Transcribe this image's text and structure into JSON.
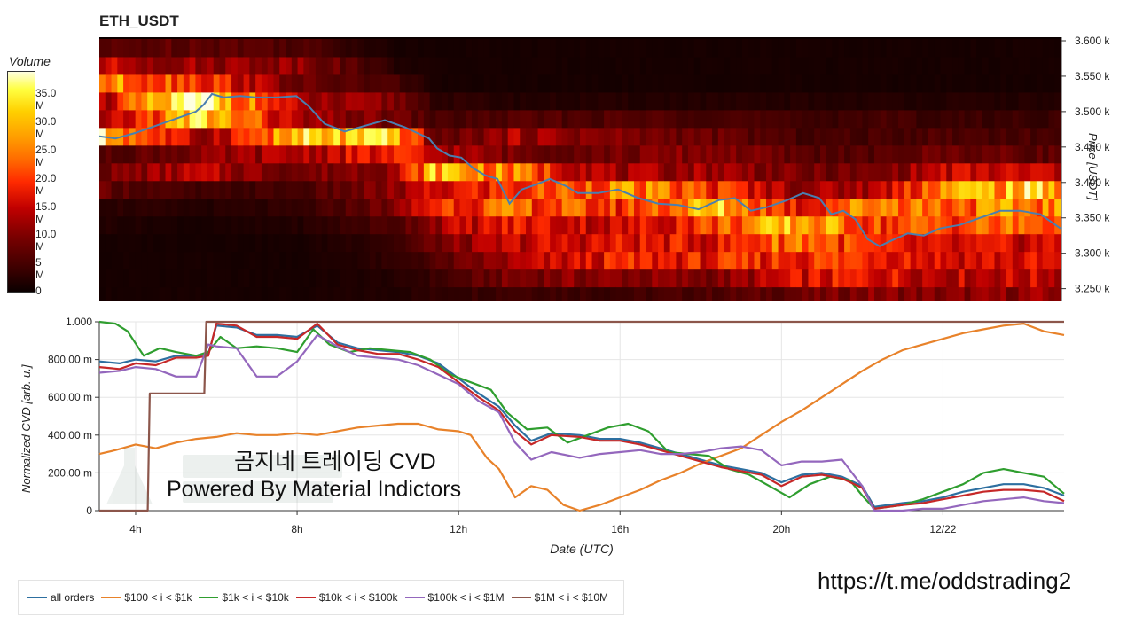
{
  "page": {
    "watermark_line1": "곰지네 트레이딩 CVD",
    "watermark_line2": "Powered By Material Indictors",
    "link": "https://t.me/oddstrading2"
  },
  "chart_data": [
    {
      "type": "heatmap",
      "title": "ETH_USDT",
      "colorbar": {
        "label": "Volume",
        "ticks": [
          "0",
          "5 M",
          "10.0 M",
          "15.0 M",
          "20.0 M",
          "25.0 M",
          "30.0 M",
          "35.0 M"
        ],
        "tick_values": [
          0,
          5,
          10,
          15,
          20,
          25,
          30,
          35
        ],
        "range": [
          0,
          39
        ]
      },
      "y_axis": {
        "label": "Price [USDT]",
        "position": "right",
        "ticks": [
          "3.250 k",
          "3.300 k",
          "3.350 k",
          "3.400 k",
          "3.450 k",
          "3.500 k",
          "3.550 k",
          "3.600 k"
        ],
        "tick_values": [
          3250,
          3300,
          3350,
          3400,
          3450,
          3500,
          3550,
          3600
        ],
        "range": [
          3232,
          3605
        ]
      },
      "x_range": [
        3.1,
        27.0
      ],
      "price_bands": [
        3240,
        3265,
        3290,
        3315,
        3340,
        3365,
        3390,
        3415,
        3440,
        3465,
        3490,
        3515,
        3540,
        3565,
        3590
      ],
      "band_intensity_keyframes": [
        {
          "t": 3.1,
          "v": [
            1,
            1,
            1,
            1,
            2,
            3,
            8,
            9,
            6,
            32,
            10,
            13,
            26,
            15,
            6
          ]
        },
        {
          "t": 5.6,
          "v": [
            1,
            1,
            1,
            1,
            1,
            2,
            4,
            14,
            10,
            12,
            33,
            38,
            22,
            12,
            8
          ]
        },
        {
          "t": 8.1,
          "v": [
            1,
            1,
            1,
            1,
            2,
            3,
            5,
            9,
            14,
            30,
            12,
            12,
            8,
            12,
            6
          ]
        },
        {
          "t": 10.5,
          "v": [
            2,
            2,
            3,
            4,
            6,
            10,
            11,
            13,
            18,
            30,
            9,
            10,
            5,
            2,
            1
          ]
        },
        {
          "t": 11.5,
          "v": [
            3,
            4,
            6,
            9,
            13,
            21,
            16,
            31,
            14,
            7,
            5,
            3,
            1,
            1,
            1
          ]
        },
        {
          "t": 13.5,
          "v": [
            5,
            10,
            13,
            15,
            18,
            23,
            20,
            24,
            9,
            13,
            6,
            2,
            1,
            1,
            1
          ]
        },
        {
          "t": 16.0,
          "v": [
            4,
            11,
            18,
            17,
            15,
            20,
            26,
            12,
            9,
            10,
            6,
            2,
            1,
            1,
            1
          ]
        },
        {
          "t": 18.5,
          "v": [
            6,
            10,
            18,
            17,
            22,
            30,
            20,
            13,
            11,
            8,
            6,
            2,
            1,
            1,
            1
          ]
        },
        {
          "t": 20.5,
          "v": [
            8,
            16,
            20,
            26,
            30,
            18,
            12,
            9,
            7,
            5,
            4,
            2,
            1,
            1,
            1
          ]
        },
        {
          "t": 22.5,
          "v": [
            11,
            18,
            21,
            17,
            21,
            28,
            14,
            9,
            6,
            5,
            5,
            2,
            1,
            1,
            1
          ]
        },
        {
          "t": 24.0,
          "v": [
            10,
            15,
            17,
            15,
            22,
            24,
            28,
            15,
            9,
            6,
            4,
            2,
            1,
            1,
            1
          ]
        },
        {
          "t": 27.0,
          "v": [
            12,
            15,
            16,
            16,
            24,
            26,
            31,
            15,
            7,
            5,
            4,
            2,
            1,
            1,
            1
          ]
        }
      ],
      "price_series": {
        "x": [
          3.1,
          3.5,
          4.0,
          4.5,
          5.0,
          5.5,
          5.7,
          5.9,
          6.2,
          6.6,
          7.0,
          7.5,
          8.0,
          8.3,
          8.7,
          9.2,
          9.7,
          10.2,
          10.7,
          11.0,
          11.3,
          11.5,
          11.8,
          12.1,
          12.4,
          12.7,
          13.0,
          13.3,
          13.6,
          14.0,
          14.3,
          14.7,
          15.0,
          15.5,
          16.0,
          16.5,
          17.0,
          17.5,
          18.0,
          18.5,
          18.9,
          19.3,
          19.7,
          20.2,
          20.6,
          21.0,
          21.3,
          21.6,
          21.9,
          22.2,
          22.5,
          22.8,
          23.2,
          23.6,
          24.0,
          24.5,
          25.0,
          25.5,
          26.0,
          26.5,
          27.0
        ],
        "y": [
          3465,
          3462,
          3470,
          3480,
          3490,
          3500,
          3510,
          3525,
          3520,
          3522,
          3520,
          3520,
          3522,
          3508,
          3483,
          3472,
          3480,
          3488,
          3478,
          3470,
          3462,
          3448,
          3438,
          3435,
          3420,
          3410,
          3405,
          3370,
          3390,
          3398,
          3405,
          3395,
          3385,
          3385,
          3390,
          3378,
          3370,
          3368,
          3362,
          3375,
          3378,
          3360,
          3365,
          3375,
          3385,
          3378,
          3355,
          3360,
          3348,
          3320,
          3310,
          3318,
          3328,
          3325,
          3335,
          3340,
          3350,
          3360,
          3360,
          3355,
          3335
        ]
      }
    },
    {
      "type": "line",
      "xlabel": "Date (UTC)",
      "ylabel": "Normalized CVD [arb. u.]",
      "ylim": [
        0,
        1
      ],
      "y_ticks": [
        "0",
        "200.00 m",
        "400.00 m",
        "600.00 m",
        "800.00 m",
        "1.000"
      ],
      "y_tick_values": [
        0,
        0.2,
        0.4,
        0.6,
        0.8,
        1.0
      ],
      "x_ticks": [
        "4h",
        "8h",
        "12h",
        "16h",
        "20h",
        "12/22"
      ],
      "x_tick_values": [
        4,
        8,
        12,
        16,
        20,
        24
      ],
      "xlim": [
        3.1,
        27.0
      ],
      "grid": true,
      "legend_position": "bottom",
      "series": [
        {
          "name": "all orders",
          "color": "#2d6fa0",
          "x": [
            3.1,
            3.6,
            4.0,
            4.5,
            5.0,
            5.5,
            5.8,
            6.0,
            6.5,
            7.0,
            7.5,
            8.0,
            8.5,
            9.0,
            9.5,
            10.0,
            10.5,
            11.0,
            11.5,
            12.0,
            12.5,
            13.0,
            13.4,
            13.8,
            14.3,
            15.0,
            15.5,
            16.0,
            16.5,
            17.0,
            17.5,
            18.0,
            18.5,
            19.0,
            19.5,
            20.0,
            20.5,
            21.0,
            21.5,
            22.0,
            22.3,
            23.0,
            23.5,
            24.0,
            24.5,
            25.0,
            25.5,
            26.0,
            26.5,
            27.0
          ],
          "y": [
            0.79,
            0.78,
            0.8,
            0.79,
            0.82,
            0.82,
            0.83,
            0.98,
            0.97,
            0.93,
            0.93,
            0.92,
            0.98,
            0.89,
            0.86,
            0.85,
            0.84,
            0.82,
            0.78,
            0.7,
            0.62,
            0.55,
            0.45,
            0.37,
            0.41,
            0.4,
            0.38,
            0.38,
            0.36,
            0.33,
            0.3,
            0.27,
            0.24,
            0.22,
            0.2,
            0.15,
            0.19,
            0.2,
            0.18,
            0.13,
            0.02,
            0.04,
            0.05,
            0.07,
            0.1,
            0.12,
            0.14,
            0.14,
            0.12,
            0.08
          ]
        },
        {
          "name": "$100 < i < $1k",
          "color": "#e8822a",
          "x": [
            3.1,
            3.5,
            4.0,
            4.5,
            5.0,
            5.5,
            6.0,
            6.5,
            7.0,
            7.5,
            8.0,
            8.5,
            9.0,
            9.5,
            10.0,
            10.5,
            11.0,
            11.5,
            12.0,
            12.3,
            12.7,
            13.0,
            13.4,
            13.8,
            14.2,
            14.6,
            15.0,
            15.5,
            16.0,
            16.5,
            17.0,
            17.5,
            18.0,
            18.5,
            19.0,
            19.5,
            20.0,
            20.5,
            21.0,
            21.5,
            22.0,
            22.5,
            23.0,
            23.5,
            24.0,
            24.5,
            25.0,
            25.5,
            26.0,
            26.5,
            27.0
          ],
          "y": [
            0.3,
            0.32,
            0.35,
            0.33,
            0.36,
            0.38,
            0.39,
            0.41,
            0.4,
            0.4,
            0.41,
            0.4,
            0.42,
            0.44,
            0.45,
            0.46,
            0.46,
            0.43,
            0.42,
            0.4,
            0.28,
            0.22,
            0.07,
            0.13,
            0.11,
            0.03,
            0.0,
            0.03,
            0.07,
            0.11,
            0.16,
            0.2,
            0.25,
            0.29,
            0.33,
            0.4,
            0.47,
            0.53,
            0.6,
            0.67,
            0.74,
            0.8,
            0.85,
            0.88,
            0.91,
            0.94,
            0.96,
            0.98,
            0.99,
            0.95,
            0.93
          ]
        },
        {
          "name": "$1k < i < $10k",
          "color": "#2f9e2f",
          "x": [
            3.1,
            3.5,
            3.8,
            4.2,
            4.6,
            5.0,
            5.5,
            5.8,
            6.1,
            6.5,
            7.0,
            7.5,
            8.0,
            8.4,
            8.8,
            9.3,
            9.8,
            10.3,
            10.8,
            11.3,
            11.8,
            12.3,
            12.8,
            13.2,
            13.7,
            14.2,
            14.7,
            15.2,
            15.7,
            16.2,
            16.7,
            17.2,
            17.7,
            18.2,
            18.7,
            19.2,
            19.7,
            20.2,
            20.7,
            21.2,
            21.7,
            22.0,
            22.3,
            23.0,
            23.5,
            24.0,
            24.5,
            25.0,
            25.5,
            26.0,
            26.5,
            27.0
          ],
          "y": [
            1.0,
            0.99,
            0.95,
            0.82,
            0.86,
            0.84,
            0.82,
            0.84,
            0.92,
            0.86,
            0.87,
            0.86,
            0.84,
            0.96,
            0.88,
            0.84,
            0.86,
            0.85,
            0.84,
            0.8,
            0.72,
            0.68,
            0.64,
            0.52,
            0.43,
            0.44,
            0.36,
            0.4,
            0.44,
            0.46,
            0.42,
            0.31,
            0.3,
            0.29,
            0.22,
            0.19,
            0.13,
            0.07,
            0.14,
            0.18,
            0.16,
            0.08,
            0.01,
            0.03,
            0.06,
            0.1,
            0.14,
            0.2,
            0.22,
            0.2,
            0.18,
            0.09
          ]
        },
        {
          "name": "$10k < i < $100k",
          "color": "#c62828",
          "x": [
            3.1,
            3.6,
            4.0,
            4.5,
            5.0,
            5.5,
            5.8,
            6.0,
            6.5,
            7.0,
            7.5,
            8.0,
            8.5,
            9.0,
            9.5,
            10.0,
            10.5,
            11.0,
            11.5,
            12.0,
            12.5,
            13.0,
            13.4,
            13.8,
            14.3,
            15.0,
            15.5,
            16.0,
            16.5,
            17.0,
            17.5,
            18.0,
            18.5,
            19.0,
            19.5,
            20.0,
            20.5,
            21.0,
            21.5,
            22.0,
            22.3,
            23.0,
            23.5,
            24.0,
            24.5,
            25.0,
            25.5,
            26.0,
            26.5,
            27.0
          ],
          "y": [
            0.76,
            0.75,
            0.78,
            0.77,
            0.81,
            0.81,
            0.82,
            0.99,
            0.98,
            0.92,
            0.92,
            0.91,
            0.99,
            0.88,
            0.85,
            0.83,
            0.83,
            0.8,
            0.76,
            0.68,
            0.6,
            0.53,
            0.42,
            0.35,
            0.4,
            0.39,
            0.37,
            0.37,
            0.35,
            0.32,
            0.29,
            0.26,
            0.23,
            0.21,
            0.19,
            0.13,
            0.18,
            0.19,
            0.17,
            0.12,
            0.01,
            0.03,
            0.04,
            0.06,
            0.08,
            0.1,
            0.11,
            0.11,
            0.1,
            0.05
          ]
        },
        {
          "name": "$100k < i < $1M",
          "color": "#9467bd",
          "x": [
            3.1,
            3.6,
            4.0,
            4.5,
            5.0,
            5.5,
            5.8,
            6.0,
            6.5,
            7.0,
            7.5,
            8.0,
            8.5,
            9.0,
            9.5,
            10.0,
            10.5,
            11.0,
            11.5,
            12.0,
            12.5,
            13.0,
            13.4,
            13.8,
            14.3,
            15.0,
            15.5,
            16.0,
            16.5,
            17.0,
            17.5,
            18.0,
            18.5,
            19.0,
            19.5,
            20.0,
            20.5,
            21.0,
            21.5,
            22.0,
            22.3,
            23.0,
            23.5,
            24.0,
            24.5,
            25.0,
            25.5,
            26.0,
            26.5,
            27.0
          ],
          "y": [
            0.73,
            0.74,
            0.76,
            0.75,
            0.71,
            0.71,
            0.88,
            0.87,
            0.86,
            0.71,
            0.71,
            0.79,
            0.93,
            0.87,
            0.82,
            0.81,
            0.8,
            0.77,
            0.72,
            0.67,
            0.58,
            0.52,
            0.36,
            0.27,
            0.31,
            0.28,
            0.3,
            0.31,
            0.32,
            0.3,
            0.3,
            0.31,
            0.33,
            0.34,
            0.32,
            0.24,
            0.26,
            0.26,
            0.27,
            0.13,
            0.0,
            0.0,
            0.01,
            0.01,
            0.03,
            0.05,
            0.06,
            0.07,
            0.05,
            0.04
          ]
        },
        {
          "name": "$1M < i < $10M",
          "color": "#8c564b",
          "x": [
            3.1,
            4.0,
            4.3,
            4.35,
            5.4,
            5.45,
            5.7,
            5.75,
            27.0
          ],
          "y": [
            0.0,
            0.0,
            0.0,
            0.62,
            0.62,
            0.62,
            0.62,
            1.0,
            1.0
          ]
        }
      ]
    }
  ]
}
